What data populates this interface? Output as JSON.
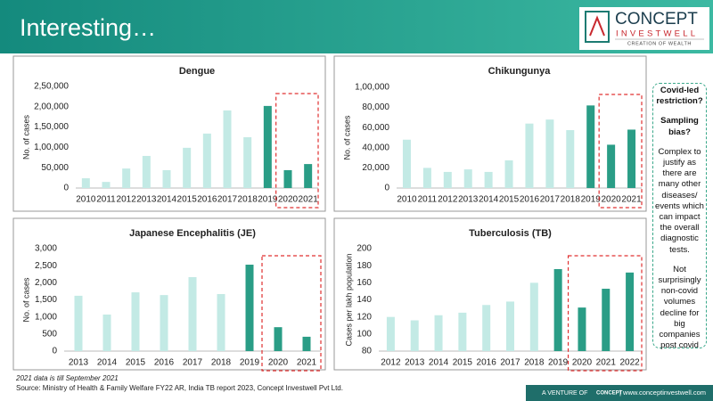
{
  "header": {
    "title": "Interesting…",
    "logo": {
      "name": "CONCEPT",
      "sub": "INVESTWELL",
      "tagline": "CREATION OF WEALTH"
    }
  },
  "chart_data": [
    {
      "type": "bar",
      "title": "Dengue",
      "y_label": "No. of cases",
      "categories": [
        "2010",
        "2011",
        "2012",
        "2013",
        "2014",
        "2015",
        "2016",
        "2017",
        "2018",
        "2019",
        "2020",
        "2021"
      ],
      "values": [
        24000,
        15000,
        48000,
        79000,
        44000,
        99000,
        134000,
        191000,
        125000,
        202000,
        44000,
        59000
      ],
      "colors": [
        "#c3eae5",
        "#c3eae5",
        "#c3eae5",
        "#c3eae5",
        "#c3eae5",
        "#c3eae5",
        "#c3eae5",
        "#c3eae5",
        "#c3eae5",
        "#2a9d86",
        "#2a9d86",
        "#2a9d86"
      ],
      "ylim": [
        0,
        250000
      ],
      "yticks": [
        0,
        {
          "value": 50000,
          "label": "50,000"
        },
        {
          "value": 100000,
          "label": "1,00,000"
        },
        {
          "value": 150000,
          "label": "1,50,000"
        },
        {
          "value": 200000,
          "label": "2,00,000"
        },
        {
          "value": 250000,
          "label": "2,50,000"
        }
      ]
    },
    {
      "type": "bar",
      "title": "Chikungunya",
      "y_label": "No. of cases",
      "categories": [
        "2010",
        "2011",
        "2012",
        "2013",
        "2014",
        "2015",
        "2016",
        "2017",
        "2018",
        "2019",
        "2020",
        "2021"
      ],
      "values": [
        48000,
        20000,
        16000,
        18500,
        16000,
        27500,
        64000,
        68000,
        57500,
        82000,
        43000,
        58000
      ],
      "colors": [
        "#c3eae5",
        "#c3eae5",
        "#c3eae5",
        "#c3eae5",
        "#c3eae5",
        "#c3eae5",
        "#c3eae5",
        "#c3eae5",
        "#c3eae5",
        "#2a9d86",
        "#2a9d86",
        "#2a9d86"
      ],
      "ylim": [
        0,
        100000
      ],
      "yticks": [
        0,
        {
          "value": 20000,
          "label": "20,000"
        },
        {
          "value": 40000,
          "label": "40,000"
        },
        {
          "value": 60000,
          "label": "60,000"
        },
        {
          "value": 80000,
          "label": "80,000"
        },
        {
          "value": 100000,
          "label": "1,00,000"
        }
      ]
    },
    {
      "type": "bar",
      "title": "Japanese Encephalitis (JE)",
      "y_label": "No. of cases",
      "categories": [
        "2013",
        "2014",
        "2015",
        "2016",
        "2017",
        "2018",
        "2019",
        "2020",
        "2021"
      ],
      "values": [
        1620,
        1070,
        1720,
        1640,
        2165,
        1670,
        2530,
        700,
        420
      ],
      "colors": [
        "#c3eae5",
        "#c3eae5",
        "#c3eae5",
        "#c3eae5",
        "#c3eae5",
        "#c3eae5",
        "#2a9d86",
        "#2a9d86",
        "#2a9d86"
      ],
      "ylim": [
        0,
        3000
      ],
      "yticks": [
        0,
        500,
        {
          "value": 1000,
          "label": "1,000"
        },
        {
          "value": 1500,
          "label": "1,500"
        },
        {
          "value": 2000,
          "label": "2,000"
        },
        {
          "value": 2500,
          "label": "2,500"
        },
        {
          "value": 3000,
          "label": "3,000"
        }
      ]
    },
    {
      "type": "bar",
      "title": "Tuberculosis (TB)",
      "y_label": "Cases per lakh population",
      "categories": [
        "2012",
        "2013",
        "2014",
        "2015",
        "2016",
        "2017",
        "2018",
        "2019",
        "2020",
        "2021",
        "2022"
      ],
      "values": [
        120,
        116,
        122,
        125,
        134,
        138,
        160,
        176,
        131,
        153,
        172
      ],
      "colors": [
        "#c3eae5",
        "#c3eae5",
        "#c3eae5",
        "#c3eae5",
        "#c3eae5",
        "#c3eae5",
        "#c3eae5",
        "#2a9d86",
        "#2a9d86",
        "#2a9d86",
        "#2a9d86"
      ],
      "ylim": [
        80,
        200
      ],
      "yticks": [
        80,
        100,
        120,
        140,
        160,
        180,
        200
      ]
    }
  ],
  "side_note": {
    "q1": "Covid-led restriction?",
    "q2": "Sampling bias?",
    "p1": "Complex to justify as there are many other diseases/ events which can impact the overall diagnostic tests.",
    "p2": "Not surprisingly non-covid volumes decline for big companies post covid"
  },
  "footer": {
    "note": "2021 data is till September 2021",
    "source": "Source: Ministry of Health & Family Welfare FY22 AR, India TB report 2023, Concept Investwell Pvt Ltd.",
    "venture": "A VENTURE OF",
    "venture_logo": "CONCEPT",
    "url": "| www.conceptinvestwell.com"
  }
}
